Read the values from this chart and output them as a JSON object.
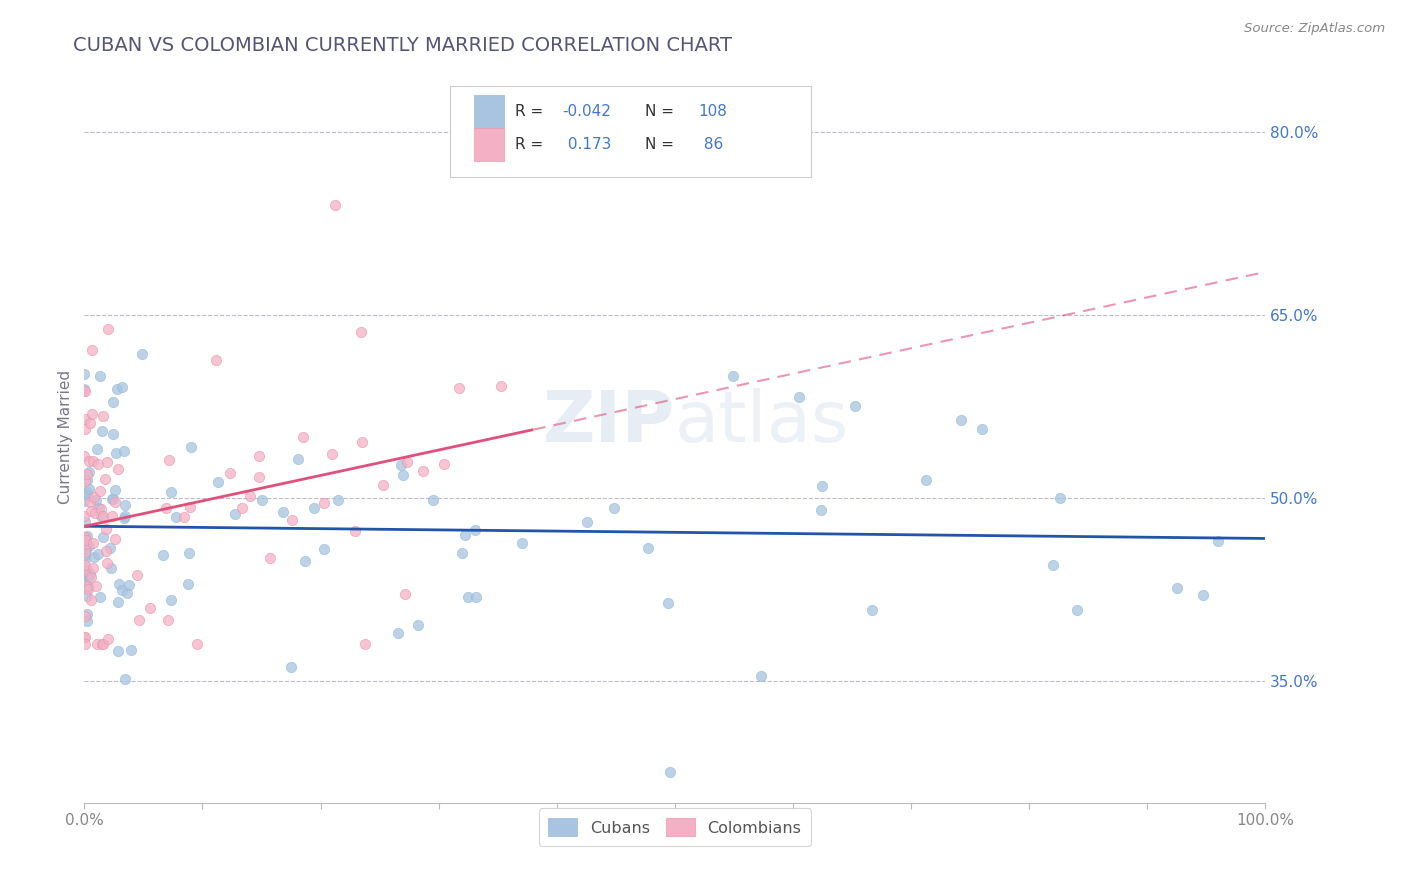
{
  "title": "CUBAN VS COLOMBIAN CURRENTLY MARRIED CORRELATION CHART",
  "source": "Source: ZipAtlas.com",
  "ylabel": "Currently Married",
  "watermark": "ZIPatlas",
  "cubans_R": -0.042,
  "cubans_N": 108,
  "colombians_R": 0.173,
  "colombians_N": 86,
  "cuban_color": "#a8c4e0",
  "colombian_color": "#f4b0c4",
  "cuban_line_color": "#2255aa",
  "colombian_line_color": "#e0507a",
  "title_color": "#555577",
  "legend_text_color": "#4477cc",
  "axis_label_color": "#4477cc",
  "ytick_color": "#4477cc",
  "xtick_color": "#888888",
  "xlim": [
    0.0,
    1.0
  ],
  "ylim": [
    0.25,
    0.85
  ],
  "ytick_positions": [
    0.35,
    0.5,
    0.65,
    0.8
  ],
  "ytick_labels": [
    "35.0%",
    "50.0%",
    "65.0%",
    "80.0%"
  ],
  "grid_color": "#aaaacc",
  "background_color": "#ffffff",
  "dot_size": 55,
  "dot_alpha": 0.75,
  "legend_R_color": "#222222",
  "legend_N_color": "#4477cc"
}
